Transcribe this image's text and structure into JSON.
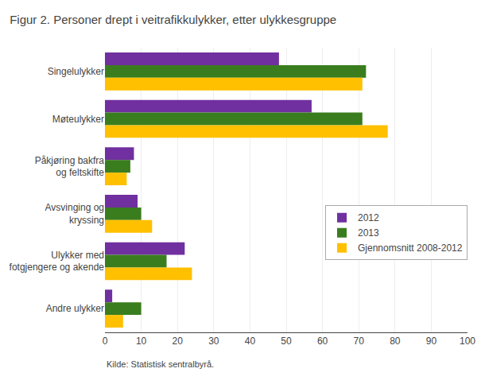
{
  "chart_data": {
    "type": "bar",
    "orientation": "horizontal",
    "title": "Figur 2. Personer drept i veitrafikkulykker, etter ulykkesgruppe",
    "categories": [
      "Singelulykker",
      "Møteulykker",
      "Påkjøring bakfra\nog feltskifte",
      "Avsvinging og\nkryssing",
      "Ulykker med\nfotgjengere og akende",
      "Andre ulykker"
    ],
    "series": [
      {
        "name": "2012",
        "color": "#7030a0",
        "values": [
          48,
          57,
          8,
          9,
          22,
          2
        ]
      },
      {
        "name": "2013",
        "color": "#3a7d1e",
        "values": [
          72,
          71,
          7,
          10,
          17,
          10
        ]
      },
      {
        "name": "Gjennomsnitt 2008-2012",
        "color": "#ffc000",
        "values": [
          71,
          78,
          6,
          13,
          24,
          5
        ]
      }
    ],
    "xlim": [
      0,
      100
    ],
    "xticks": [
      0,
      10,
      20,
      30,
      40,
      50,
      60,
      70,
      80,
      90,
      100
    ],
    "grid": true,
    "legend": "right",
    "annotations": [
      "Kilde: Statistisk sentralbyrå."
    ]
  }
}
